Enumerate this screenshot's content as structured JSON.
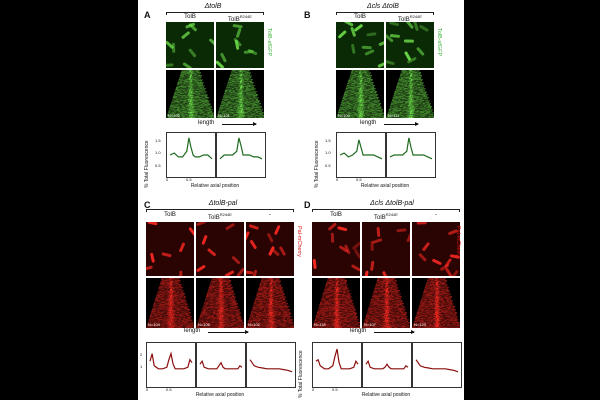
{
  "panels": {
    "A": {
      "letter": "A",
      "genotype": "ΔtolB",
      "col1": "TolB",
      "col2": "TolB",
      "col2_sup": "R244E",
      "stain": "TolB-sfGFP",
      "n1": "N=102",
      "n2": "N=101",
      "length": "length",
      "ylabel": "% Total Fluorescence",
      "xlabel": "Relative axial position",
      "yticks": [
        "1.5",
        "1.0",
        "0.5"
      ],
      "xticks": [
        "0",
        "0.5",
        "1"
      ]
    },
    "B": {
      "letter": "B",
      "genotype": "Δcls ΔtolB",
      "col1": "TolB",
      "col2": "TolB",
      "col2_sup": "R244E",
      "stain": "TolB-sfGFP",
      "n1": "N=100",
      "n2": "N=111",
      "length": "length",
      "ylabel": "% Total Fluorescence",
      "xlabel": "Relative axial position",
      "yticks": [
        "1.5",
        "1.0",
        "0.5"
      ],
      "xticks": [
        "0",
        "0.5",
        "1"
      ]
    },
    "C": {
      "letter": "C",
      "genotype": "ΔtolB-pal",
      "col1": "TolB",
      "col2": "TolB",
      "col2_sup": "R244E",
      "col3": "-",
      "stain": "Pal-mCherry",
      "n1": "N=104",
      "n2": "N=106",
      "n3": "N=102",
      "length": "length",
      "ylabel": "% Total Fluorescence",
      "xlabel": "Relative axial position",
      "yticks": [
        "2",
        "1",
        "0"
      ],
      "xticks": [
        "0",
        "0.5",
        "1"
      ]
    },
    "D": {
      "letter": "D",
      "genotype": "Δcls ΔtolB-pal",
      "col1": "TolB",
      "col2": "TolB",
      "col2_sup": "R244E",
      "col3": "-",
      "stain": "Pal-mCherry",
      "n1": "N=118",
      "n2": "N=107",
      "n3": "N=123",
      "length": "length",
      "ylabel": "% Total Fluorescence",
      "xlabel": "Relative axial position",
      "yticks": [
        "2",
        "1",
        "0"
      ],
      "xticks": [
        "0",
        "0.5",
        "1"
      ]
    }
  },
  "colors": {
    "green_signal": "#6fe34b",
    "green_dark": "#0a2a06",
    "red_signal": "#ff2a22",
    "red_dark": "#2a0303",
    "green_trace": "#1f6b1f",
    "red_trace": "#8b0d0d"
  },
  "chart_data": [
    {
      "type": "line",
      "panel": "A",
      "series": [
        {
          "x": [
            0,
            0.1,
            0.2,
            0.3,
            0.4,
            0.45,
            0.5,
            0.55,
            0.6,
            0.7,
            0.8,
            0.9,
            1.0
          ],
          "y": [
            1.0,
            1.05,
            0.95,
            0.95,
            1.1,
            1.45,
            1.2,
            1.0,
            0.95,
            0.95,
            1.0,
            1.0,
            0.9
          ]
        },
        {
          "x": [
            0,
            0.1,
            0.2,
            0.3,
            0.4,
            0.45,
            0.5,
            0.55,
            0.6,
            0.7,
            0.8,
            0.9,
            1.0
          ],
          "y": [
            0.9,
            1.0,
            1.0,
            1.0,
            1.1,
            1.45,
            1.25,
            1.0,
            1.0,
            1.0,
            0.95,
            0.95,
            0.9
          ]
        }
      ],
      "ylim": [
        0.5,
        1.5
      ]
    },
    {
      "type": "line",
      "panel": "B",
      "series": [
        {
          "x": [
            0,
            0.1,
            0.2,
            0.3,
            0.4,
            0.45,
            0.5,
            0.55,
            0.6,
            0.7,
            0.8,
            0.9,
            1.0
          ],
          "y": [
            1.0,
            1.05,
            0.95,
            1.0,
            1.1,
            1.4,
            1.2,
            1.0,
            1.0,
            1.0,
            1.0,
            0.95,
            0.9
          ]
        },
        {
          "x": [
            0,
            0.1,
            0.2,
            0.3,
            0.4,
            0.45,
            0.5,
            0.55,
            0.6,
            0.7,
            0.8,
            0.9,
            1.0
          ],
          "y": [
            0.95,
            1.0,
            1.0,
            1.0,
            1.1,
            1.45,
            1.2,
            1.0,
            1.0,
            1.0,
            1.0,
            0.95,
            0.9
          ]
        }
      ],
      "ylim": [
        0.5,
        1.5
      ]
    },
    {
      "type": "line",
      "panel": "C",
      "series": [
        {
          "x": [
            0,
            0.05,
            0.1,
            0.2,
            0.3,
            0.4,
            0.45,
            0.5,
            0.55,
            0.6,
            0.7,
            0.8,
            0.9,
            0.95,
            1.0
          ],
          "y": [
            1.5,
            2.0,
            1.2,
            1.0,
            1.0,
            1.1,
            1.6,
            2.0,
            1.3,
            1.0,
            1.0,
            1.0,
            1.1,
            1.6,
            1.4
          ]
        },
        {
          "x": [
            0,
            0.05,
            0.1,
            0.2,
            0.3,
            0.4,
            0.45,
            0.5,
            0.55,
            0.6,
            0.7,
            0.8,
            0.9,
            0.95,
            1.0
          ],
          "y": [
            1.3,
            1.5,
            1.1,
            1.0,
            1.0,
            1.0,
            1.2,
            1.4,
            1.1,
            1.0,
            1.0,
            1.0,
            1.0,
            1.2,
            1.1
          ]
        },
        {
          "x": [
            0,
            0.05,
            0.1,
            0.2,
            0.3,
            0.4,
            0.45,
            0.5,
            0.55,
            0.6,
            0.7,
            0.8,
            0.9,
            0.95,
            1.0
          ],
          "y": [
            1.6,
            1.4,
            1.2,
            1.1,
            1.05,
            1.0,
            1.0,
            1.0,
            1.0,
            1.0,
            1.0,
            0.95,
            0.9,
            0.85,
            0.8
          ]
        }
      ],
      "ylim": [
        0,
        2.5
      ]
    },
    {
      "type": "line",
      "panel": "D",
      "series": [
        {
          "x": [
            0,
            0.05,
            0.1,
            0.2,
            0.3,
            0.4,
            0.45,
            0.5,
            0.55,
            0.6,
            0.7,
            0.8,
            0.9,
            0.95,
            1.0
          ],
          "y": [
            1.5,
            1.6,
            1.2,
            1.0,
            1.0,
            1.2,
            1.8,
            2.3,
            1.4,
            1.0,
            1.0,
            1.0,
            1.1,
            1.5,
            1.3
          ]
        },
        {
          "x": [
            0,
            0.05,
            0.1,
            0.2,
            0.3,
            0.4,
            0.45,
            0.5,
            0.55,
            0.6,
            0.7,
            0.8,
            0.9,
            0.95,
            1.0
          ],
          "y": [
            1.3,
            1.5,
            1.1,
            1.0,
            1.0,
            1.0,
            1.1,
            1.3,
            1.1,
            1.0,
            1.0,
            1.0,
            1.0,
            1.2,
            1.1
          ]
        },
        {
          "x": [
            0,
            0.05,
            0.1,
            0.2,
            0.3,
            0.4,
            0.45,
            0.5,
            0.55,
            0.6,
            0.7,
            0.8,
            0.9,
            0.95,
            1.0
          ],
          "y": [
            1.6,
            1.4,
            1.2,
            1.1,
            1.05,
            1.0,
            1.0,
            1.0,
            1.0,
            1.0,
            1.0,
            0.95,
            0.9,
            0.85,
            0.8
          ]
        }
      ],
      "ylim": [
        0,
        2.5
      ]
    }
  ]
}
